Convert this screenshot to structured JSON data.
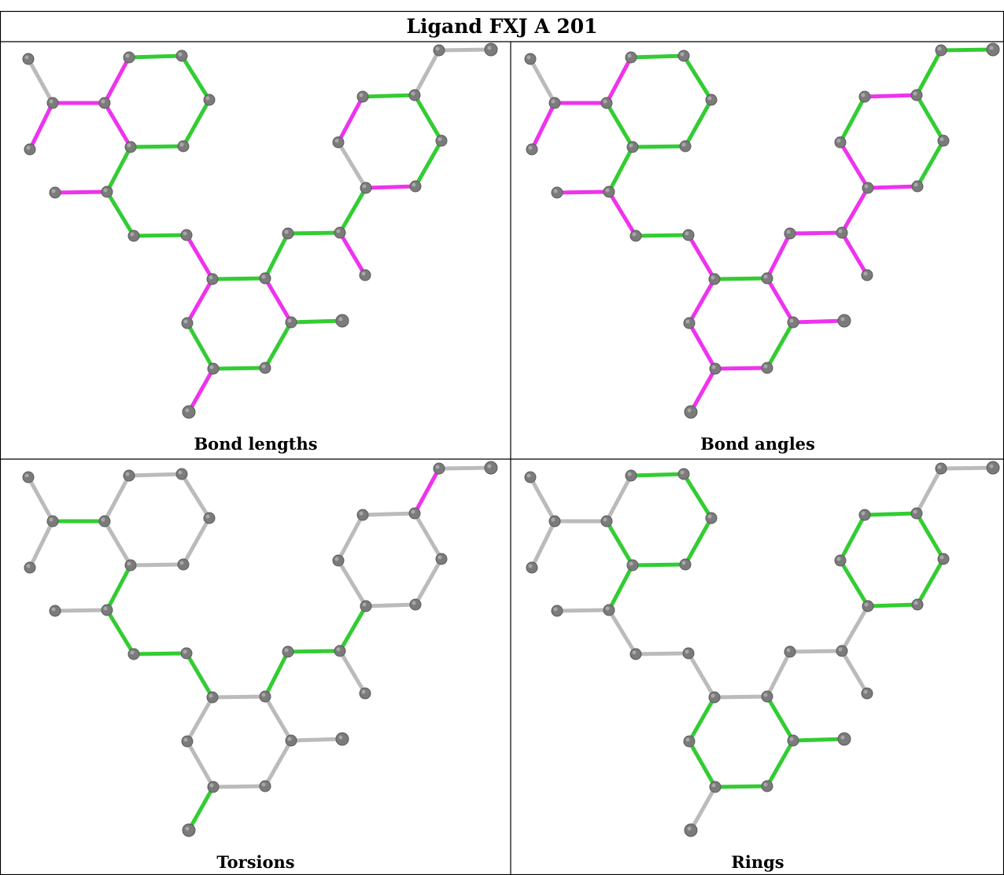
{
  "title": "Ligand FXJ A 201",
  "colors": {
    "outlier": "#ee33ee",
    "ok": "#33cc33",
    "neutral": "#bbbbbb",
    "atom": "#7b7b7b"
  },
  "panels": [
    {
      "caption": "Bond lengths",
      "bond_colors": [
        "neutral",
        "outlier",
        "outlier",
        "outlier",
        "ok",
        "ok",
        "ok",
        "ok",
        "outlier",
        "ok",
        "outlier",
        "ok",
        "ok",
        "outlier",
        "ok",
        "outlier",
        "ok",
        "ok",
        "ok",
        "outlier",
        "ok",
        "outlier",
        "ok",
        "ok",
        "outlier",
        "ok",
        "outlier",
        "ok",
        "ok",
        "ok",
        "outlier"
      ]
    },
    {
      "caption": "Bond angles",
      "bond_colors": [
        "neutral",
        "outlier",
        "outlier",
        "outlier",
        "ok",
        "ok",
        "ok",
        "ok",
        "ok",
        "ok",
        "outlier",
        "outlier",
        "ok",
        "outlier",
        "ok",
        "outlier",
        "ok",
        "outlier",
        "outlier",
        "outlier",
        "outlier",
        "outlier",
        "outlier",
        "outlier",
        "outlier",
        "outlier",
        "outlier",
        "ok",
        "ok",
        "outlier",
        "ok",
        "outlier",
        "ok",
        "ok",
        "outlier"
      ]
    },
    {
      "caption": "Torsions",
      "bond_colors": [
        "neutral",
        "neutral",
        "ok",
        "neutral",
        "neutral",
        "neutral",
        "neutral",
        "neutral",
        "neutral",
        "ok",
        "neutral",
        "ok",
        "ok",
        "ok",
        "neutral",
        "neutral",
        "neutral",
        "neutral",
        "neutral",
        "neutral",
        "neutral",
        "ok",
        "ok",
        "ok",
        "neutral",
        "ok",
        "neutral",
        "neutral",
        "neutral",
        "neutral",
        "neutral",
        "neutral",
        "outlier"
      ]
    },
    {
      "caption": "Rings",
      "bond_colors": [
        "neutral",
        "neutral",
        "neutral",
        "neutral",
        "ok",
        "ok",
        "ok",
        "ok",
        "ok",
        "ok",
        "neutral",
        "neutral",
        "neutral",
        "neutral",
        "neutral",
        "ok",
        "ok",
        "ok",
        "ok",
        "ok",
        "ok",
        "neutral",
        "neutral",
        "neutral",
        "neutral",
        "neutral",
        "ok",
        "ok",
        "ok",
        "ok",
        "ok",
        "ok",
        "neutral"
      ]
    }
  ]
}
